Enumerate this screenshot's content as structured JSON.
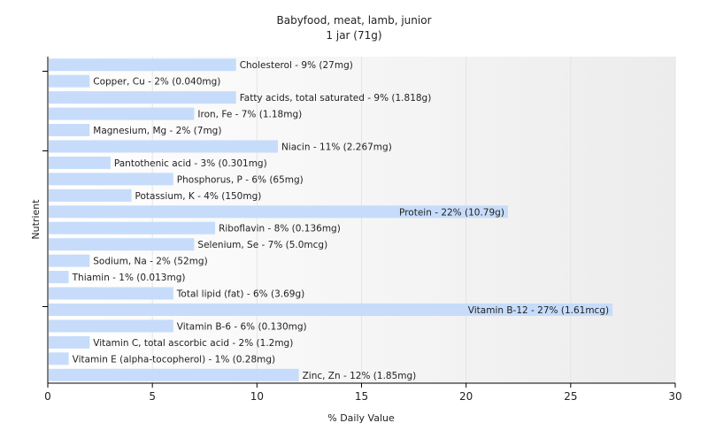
{
  "chart_data": {
    "type": "bar",
    "orientation": "horizontal",
    "title": "Babyfood, meat, lamb, junior",
    "subtitle": "1 jar (71g)",
    "xlabel": "% Daily Value",
    "ylabel": "Nutrient",
    "xlim": [
      0,
      30
    ],
    "xticks": [
      0,
      5,
      10,
      15,
      20,
      25,
      30
    ],
    "grid": "vertical",
    "colors": {
      "bar": "#c6dcfa",
      "grid": "#e4e4e4",
      "axis": "#000000",
      "text": "#222222"
    },
    "categories": [
      "Cholesterol",
      "Copper, Cu",
      "Fatty acids, total saturated",
      "Iron, Fe",
      "Magnesium, Mg",
      "Niacin",
      "Pantothenic acid",
      "Phosphorus, P",
      "Potassium, K",
      "Protein",
      "Riboflavin",
      "Selenium, Se",
      "Sodium, Na",
      "Thiamin",
      "Total lipid (fat)",
      "Vitamin B-12",
      "Vitamin B-6",
      "Vitamin C, total ascorbic acid",
      "Vitamin E (alpha-tocopherol)",
      "Zinc, Zn"
    ],
    "values": [
      9,
      2,
      9,
      7,
      2,
      11,
      3,
      6,
      4,
      22,
      8,
      7,
      2,
      1,
      6,
      27,
      6,
      2,
      1,
      12
    ],
    "labels": [
      "Cholesterol - 9% (27mg)",
      "Copper, Cu - 2% (0.040mg)",
      "Fatty acids, total saturated - 9% (1.818g)",
      "Iron, Fe - 7% (1.18mg)",
      "Magnesium, Mg - 2% (7mg)",
      "Niacin - 11% (2.267mg)",
      "Pantothenic acid - 3% (0.301mg)",
      "Phosphorus, P - 6% (65mg)",
      "Potassium, K - 4% (150mg)",
      "Protein - 22% (10.79g)",
      "Riboflavin - 8% (0.136mg)",
      "Selenium, Se - 7% (5.0mcg)",
      "Sodium, Na - 2% (52mg)",
      "Thiamin - 1% (0.013mg)",
      "Total lipid (fat) - 6% (3.69g)",
      "Vitamin B-12 - 27% (1.61mcg)",
      "Vitamin B-6 - 6% (0.130mg)",
      "Vitamin C, total ascorbic acid - 2% (1.2mg)",
      "Vitamin E (alpha-tocopherol) - 1% (0.28mg)",
      "Zinc, Zn - 12% (1.85mg)"
    ]
  }
}
